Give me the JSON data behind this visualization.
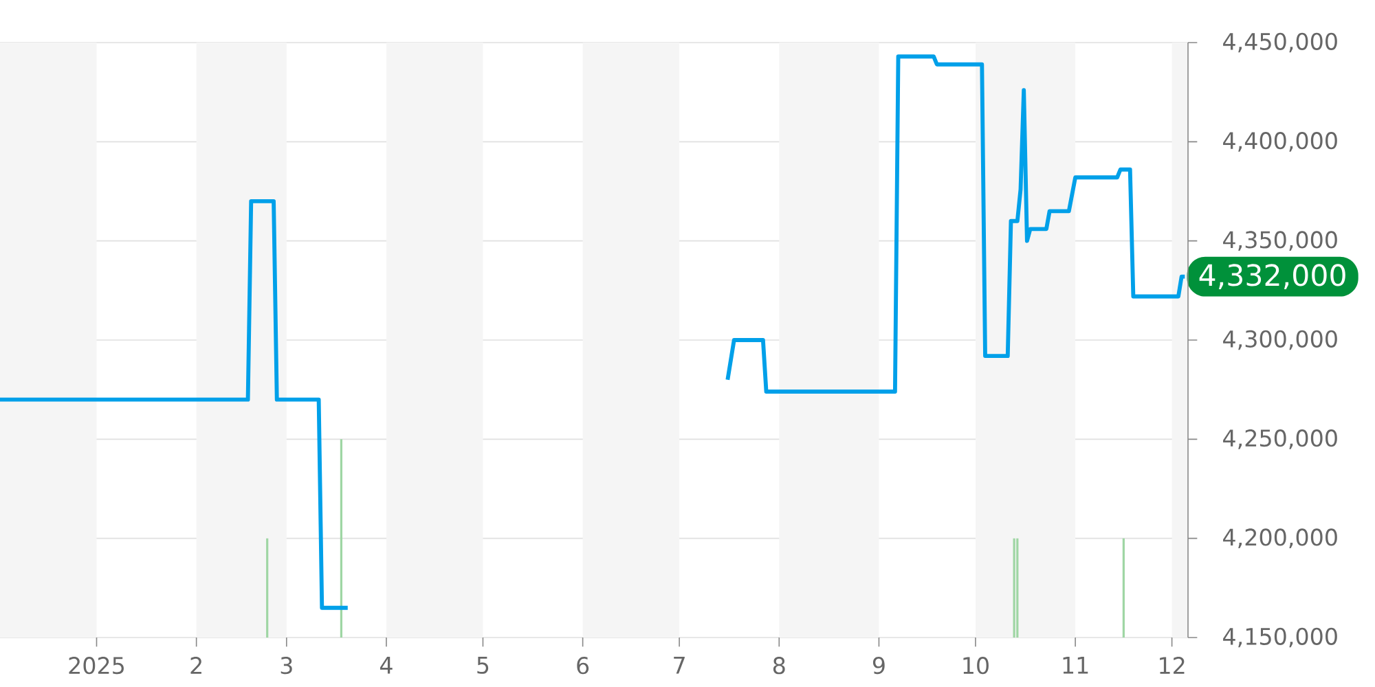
{
  "chart_data": {
    "type": "line",
    "x": [
      "2024-12-02",
      "2025-02-17",
      "2025-02-18",
      "2025-02-25",
      "2025-02-26",
      "2025-03-11",
      "2025-03-12",
      "2025-03-20",
      "2025-05-15",
      "2025-07-16",
      "2025-07-18",
      "2025-07-27",
      "2025-07-28",
      "2025-09-06",
      "2025-09-07",
      "2025-09-18",
      "2025-09-19",
      "2025-10-03",
      "2025-10-04",
      "2025-10-11",
      "2025-10-12",
      "2025-10-14",
      "2025-10-15",
      "2025-10-16",
      "2025-10-17",
      "2025-10-18",
      "2025-10-23",
      "2025-10-24",
      "2025-10-30",
      "2025-11-01",
      "2025-11-14",
      "2025-11-15",
      "2025-11-18",
      "2025-11-19",
      "2025-12-03",
      "2025-12-04",
      "2025-12-05"
    ],
    "series": [
      {
        "color": "#00a0e9",
        "values": [
          4270000,
          4270000,
          4370000,
          4370000,
          4270000,
          4270000,
          4165000,
          4165000,
          null,
          4280000,
          4300000,
          4300000,
          4274000,
          4274000,
          4443000,
          4443000,
          4439000,
          4439000,
          4292000,
          4292000,
          4360000,
          4360000,
          4376000,
          4426000,
          4350000,
          4356000,
          4356000,
          4365000,
          4365000,
          4382000,
          4382000,
          4386000,
          4386000,
          4322000,
          4322000,
          4332000,
          4332000
        ]
      },
      {
        "type": "bar",
        "color": "#9fd6a4",
        "x": [
          "2025-02-23",
          "2025-03-18",
          "2025-10-13",
          "2025-10-14",
          "2025-11-16"
        ],
        "values": [
          4200000,
          4250000,
          4200000,
          4200000,
          4200000
        ]
      }
    ],
    "xlim": [
      "2024-12-02",
      "2025-12-06"
    ],
    "xticks": [
      {
        "value": "2025-01-01",
        "label": "2025"
      },
      {
        "value": "2025-02-01",
        "label": "2"
      },
      {
        "value": "2025-03-01",
        "label": "3"
      },
      {
        "value": "2025-04-01",
        "label": "4"
      },
      {
        "value": "2025-05-01",
        "label": "5"
      },
      {
        "value": "2025-06-01",
        "label": "6"
      },
      {
        "value": "2025-07-01",
        "label": "7"
      },
      {
        "value": "2025-08-01",
        "label": "8"
      },
      {
        "value": "2025-09-01",
        "label": "9"
      },
      {
        "value": "2025-10-01",
        "label": "10"
      },
      {
        "value": "2025-11-01",
        "label": "11"
      },
      {
        "value": "2025-12-01",
        "label": "12"
      }
    ],
    "ylim": [
      4150000,
      4450000
    ],
    "yticks": [
      {
        "value": 4150000,
        "label": "4,150,000"
      },
      {
        "value": 4200000,
        "label": "4,200,000"
      },
      {
        "value": 4250000,
        "label": "4,250,000"
      },
      {
        "value": 4300000,
        "label": "4,300,000"
      },
      {
        "value": 4350000,
        "label": "4,350,000"
      },
      {
        "value": 4400000,
        "label": "4,400,000"
      },
      {
        "value": 4450000,
        "label": "4,450,000"
      }
    ],
    "grid": "y",
    "marker": "none",
    "line_style": "solid",
    "bands": [
      {
        "axis": "x",
        "from": "2024-12-02",
        "to": "2025-01-01",
        "color": "#f5f5f5"
      },
      {
        "axis": "x",
        "from": "2025-02-01",
        "to": "2025-03-01",
        "color": "#f5f5f5"
      },
      {
        "axis": "x",
        "from": "2025-04-01",
        "to": "2025-05-01",
        "color": "#f5f5f5"
      },
      {
        "axis": "x",
        "from": "2025-06-01",
        "to": "2025-07-01",
        "color": "#f5f5f5"
      },
      {
        "axis": "x",
        "from": "2025-08-01",
        "to": "2025-09-01",
        "color": "#f5f5f5"
      },
      {
        "axis": "x",
        "from": "2025-10-01",
        "to": "2025-11-01",
        "color": "#f5f5f5"
      },
      {
        "axis": "x",
        "from": "2025-12-01",
        "to": "2025-12-06",
        "color": "#f5f5f5"
      }
    ],
    "annotations": [
      {
        "text": "4,332,000",
        "x": "2025-12-05",
        "y": 4332000
      }
    ]
  }
}
